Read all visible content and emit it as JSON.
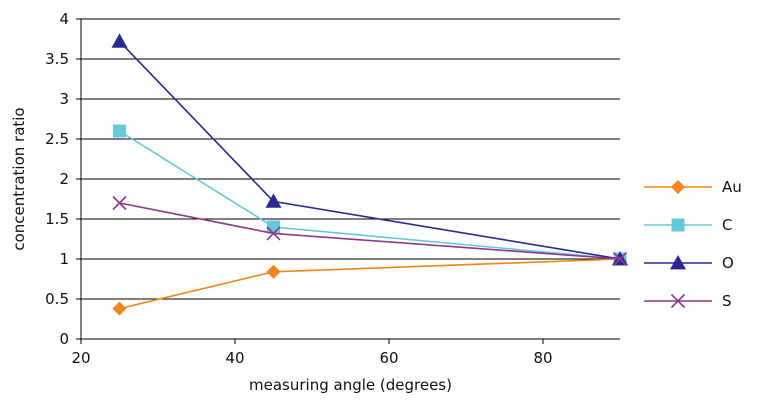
{
  "chart_data": {
    "type": "line",
    "title": "",
    "xlabel": "measuring angle (degrees)",
    "ylabel": "concentration ratio",
    "xlim": [
      20,
      90
    ],
    "ylim": [
      0,
      4
    ],
    "x_ticks": [
      20,
      40,
      60,
      80
    ],
    "y_ticks": [
      0,
      0.5,
      1,
      1.5,
      2,
      2.5,
      3,
      3.5,
      4
    ],
    "grid": "horizontal",
    "legend_position": "right",
    "series": [
      {
        "name": "Au",
        "color": "#f0861c",
        "marker": "diamond",
        "points": [
          [
            25,
            0.38
          ],
          [
            45,
            0.84
          ],
          [
            90,
            1.0
          ]
        ]
      },
      {
        "name": "C",
        "color": "#66c8d8",
        "marker": "square",
        "points": [
          [
            25,
            2.6
          ],
          [
            45,
            1.4
          ],
          [
            90,
            1.0
          ]
        ]
      },
      {
        "name": "O",
        "color": "#2a2a8e",
        "marker": "triangle",
        "points": [
          [
            25,
            3.72
          ],
          [
            45,
            1.72
          ],
          [
            90,
            1.0
          ]
        ]
      },
      {
        "name": "S",
        "color": "#8c3a8c",
        "marker": "x",
        "points": [
          [
            25,
            1.7
          ],
          [
            45,
            1.32
          ],
          [
            90,
            1.0
          ]
        ]
      }
    ]
  }
}
